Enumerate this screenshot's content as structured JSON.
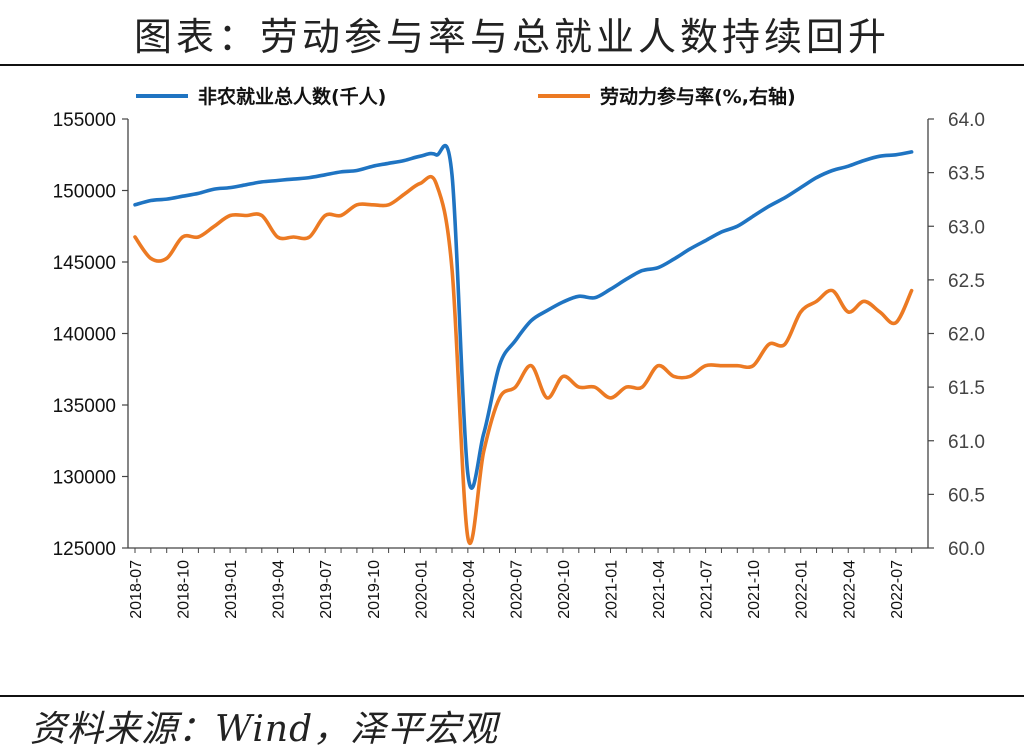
{
  "header": {
    "title": "图表：劳动参与率与总就业人数持续回升"
  },
  "footer": {
    "source": "资料来源：Wind，泽平宏观"
  },
  "colors": {
    "employment": "#1f74c2",
    "participation": "#ec7a23",
    "axis": "#444444"
  },
  "chart_data": {
    "type": "line",
    "title": "",
    "xlabel": "",
    "ylabel": "",
    "ylim": [
      125000,
      155000
    ],
    "y2lim": [
      60.0,
      64.0
    ],
    "grid": false,
    "legend": "top",
    "y_ticks": [
      "125000",
      "130000",
      "135000",
      "140000",
      "145000",
      "150000",
      "155000"
    ],
    "y2_ticks": [
      "60.0",
      "60.5",
      "61.0",
      "61.5",
      "62.0",
      "62.5",
      "63.0",
      "63.5",
      "64.0"
    ],
    "x_ticks": [
      "2018-07",
      "2018-10",
      "2019-01",
      "2019-04",
      "2019-07",
      "2019-10",
      "2020-01",
      "2020-04",
      "2020-07",
      "2020-10",
      "2021-01",
      "2021-04",
      "2021-07",
      "2021-10",
      "2022-01",
      "2022-04",
      "2022-07"
    ],
    "x": [
      "2018-07",
      "2018-08",
      "2018-09",
      "2018-10",
      "2018-11",
      "2018-12",
      "2019-01",
      "2019-02",
      "2019-03",
      "2019-04",
      "2019-05",
      "2019-06",
      "2019-07",
      "2019-08",
      "2019-09",
      "2019-10",
      "2019-11",
      "2019-12",
      "2020-01",
      "2020-02",
      "2020-03",
      "2020-04",
      "2020-05",
      "2020-06",
      "2020-07",
      "2020-08",
      "2020-09",
      "2020-10",
      "2020-11",
      "2020-12",
      "2021-01",
      "2021-02",
      "2021-03",
      "2021-04",
      "2021-05",
      "2021-06",
      "2021-07",
      "2021-08",
      "2021-09",
      "2021-10",
      "2021-11",
      "2021-12",
      "2022-01",
      "2022-02",
      "2022-03",
      "2022-04",
      "2022-05",
      "2022-06",
      "2022-07",
      "2022-08"
    ],
    "series": [
      {
        "name": "非农就业总人数(千人)",
        "axis": "left",
        "values": [
          149000,
          149300,
          149400,
          149600,
          149800,
          150100,
          150200,
          150400,
          150600,
          150700,
          150800,
          150900,
          151100,
          151300,
          151400,
          151700,
          151900,
          152100,
          152400,
          152500,
          151100,
          130200,
          133000,
          137800,
          139500,
          140900,
          141600,
          142200,
          142600,
          142500,
          143100,
          143800,
          144400,
          144600,
          145200,
          145900,
          146500,
          147100,
          147500,
          148200,
          148900,
          149500,
          150200,
          150900,
          151400,
          151700,
          152100,
          152400,
          152500,
          152700
        ]
      },
      {
        "name": "劳动力参与率(%,右轴)",
        "axis": "right",
        "values": [
          62.9,
          62.7,
          62.7,
          62.9,
          62.9,
          63.0,
          63.1,
          63.1,
          63.1,
          62.9,
          62.9,
          62.9,
          63.1,
          63.1,
          63.2,
          63.2,
          63.2,
          63.3,
          63.4,
          63.4,
          62.6,
          60.1,
          60.9,
          61.4,
          61.5,
          61.7,
          61.4,
          61.6,
          61.5,
          61.5,
          61.4,
          61.5,
          61.5,
          61.7,
          61.6,
          61.6,
          61.7,
          61.7,
          61.7,
          61.7,
          61.9,
          61.9,
          62.2,
          62.3,
          62.4,
          62.2,
          62.3,
          62.2,
          62.1,
          62.4
        ]
      }
    ]
  }
}
